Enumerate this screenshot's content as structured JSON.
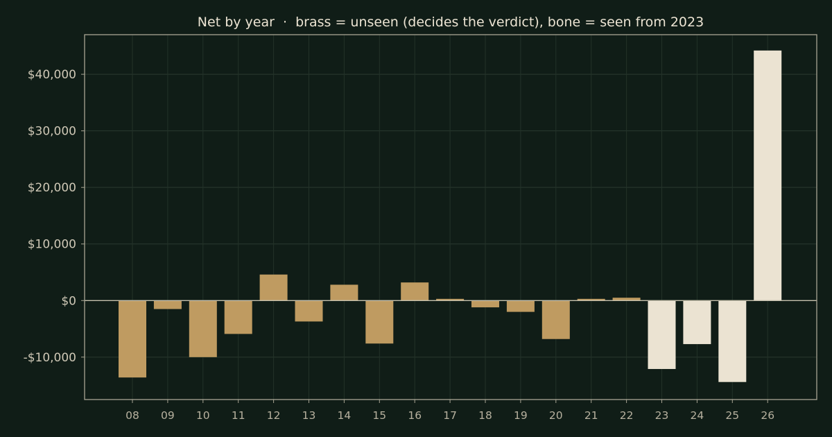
{
  "chart_data": {
    "type": "bar",
    "title": "Net by year  ·  brass = unseen (decides the verdict), bone = seen from 2023",
    "xlabel": "",
    "ylabel": "",
    "categories": [
      "08",
      "09",
      "10",
      "11",
      "12",
      "13",
      "14",
      "15",
      "16",
      "17",
      "18",
      "19",
      "20",
      "21",
      "22",
      "23",
      "24",
      "25",
      "26"
    ],
    "values": [
      -13600,
      -1500,
      -10000,
      -5900,
      4600,
      -3700,
      2800,
      -7600,
      3200,
      300,
      -1200,
      -2000,
      -6800,
      300,
      500,
      -12100,
      -7700,
      -14400,
      44200
    ],
    "groups": [
      "unseen",
      "unseen",
      "unseen",
      "unseen",
      "unseen",
      "unseen",
      "unseen",
      "unseen",
      "unseen",
      "unseen",
      "unseen",
      "unseen",
      "unseen",
      "unseen",
      "unseen",
      "seen",
      "seen",
      "seen",
      "seen"
    ],
    "colors": {
      "unseen": "#bf9b61",
      "seen": "#ebe3d2"
    },
    "ylim": [
      -17500,
      47000
    ],
    "yticks": [
      -10000,
      0,
      10000,
      20000,
      30000,
      40000
    ],
    "ytick_labels": [
      "-$10,000",
      "$0",
      "$10,000",
      "$20,000",
      "$30,000",
      "$40,000"
    ],
    "grid": true,
    "legend": "none"
  }
}
